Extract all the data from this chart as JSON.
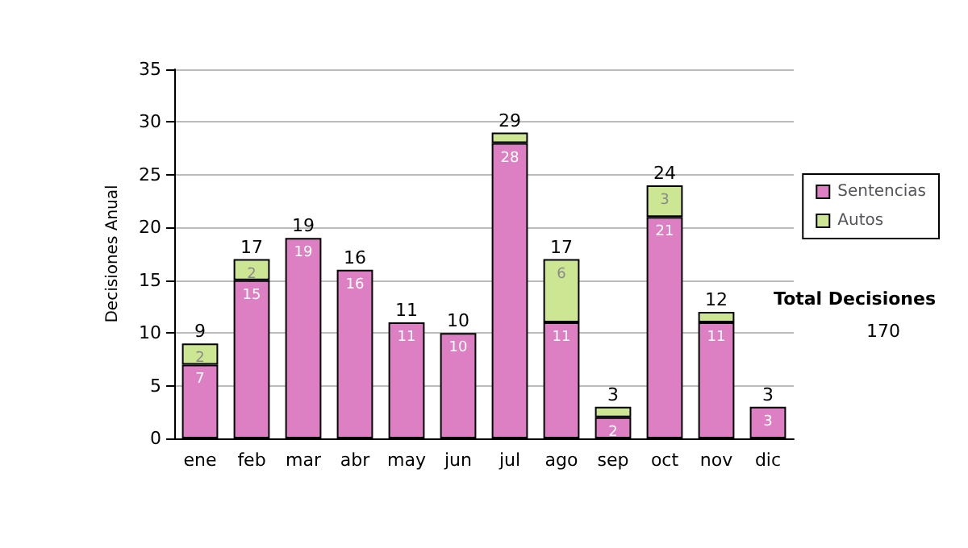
{
  "chart_data": {
    "type": "bar",
    "stacked": true,
    "categories": [
      "ene",
      "feb",
      "mar",
      "abr",
      "may",
      "jun",
      "jul",
      "ago",
      "sep",
      "oct",
      "nov",
      "dic"
    ],
    "ylabel": "Decisiones Anual",
    "ylim": [
      0,
      35
    ],
    "yticks": [
      0,
      5,
      10,
      15,
      20,
      25,
      30,
      35
    ],
    "grid": "y",
    "legend": "right",
    "series": [
      {
        "name": "Sentencias",
        "color": "#dd7fc3",
        "values": [
          7,
          15,
          19,
          16,
          11,
          10,
          28,
          11,
          2,
          21,
          11,
          3
        ],
        "value_labels": [
          "7",
          "15",
          "19",
          "16",
          "11",
          "10",
          "28",
          "11",
          "2",
          "21",
          "11",
          "3"
        ]
      },
      {
        "name": "Autos",
        "color": "#cde693",
        "values": [
          2,
          2,
          0,
          0,
          0,
          0,
          1,
          6,
          1,
          3,
          1,
          0
        ],
        "value_labels": [
          "2",
          "2",
          null,
          null,
          null,
          null,
          null,
          "6",
          null,
          "3",
          null,
          null
        ]
      }
    ],
    "totals": [
      "9",
      "17",
      "19",
      "16",
      "11",
      "10",
      "29",
      "17",
      "3",
      "24",
      "12",
      "3"
    ],
    "annotations": [
      "Total Decisiones",
      "170"
    ]
  }
}
